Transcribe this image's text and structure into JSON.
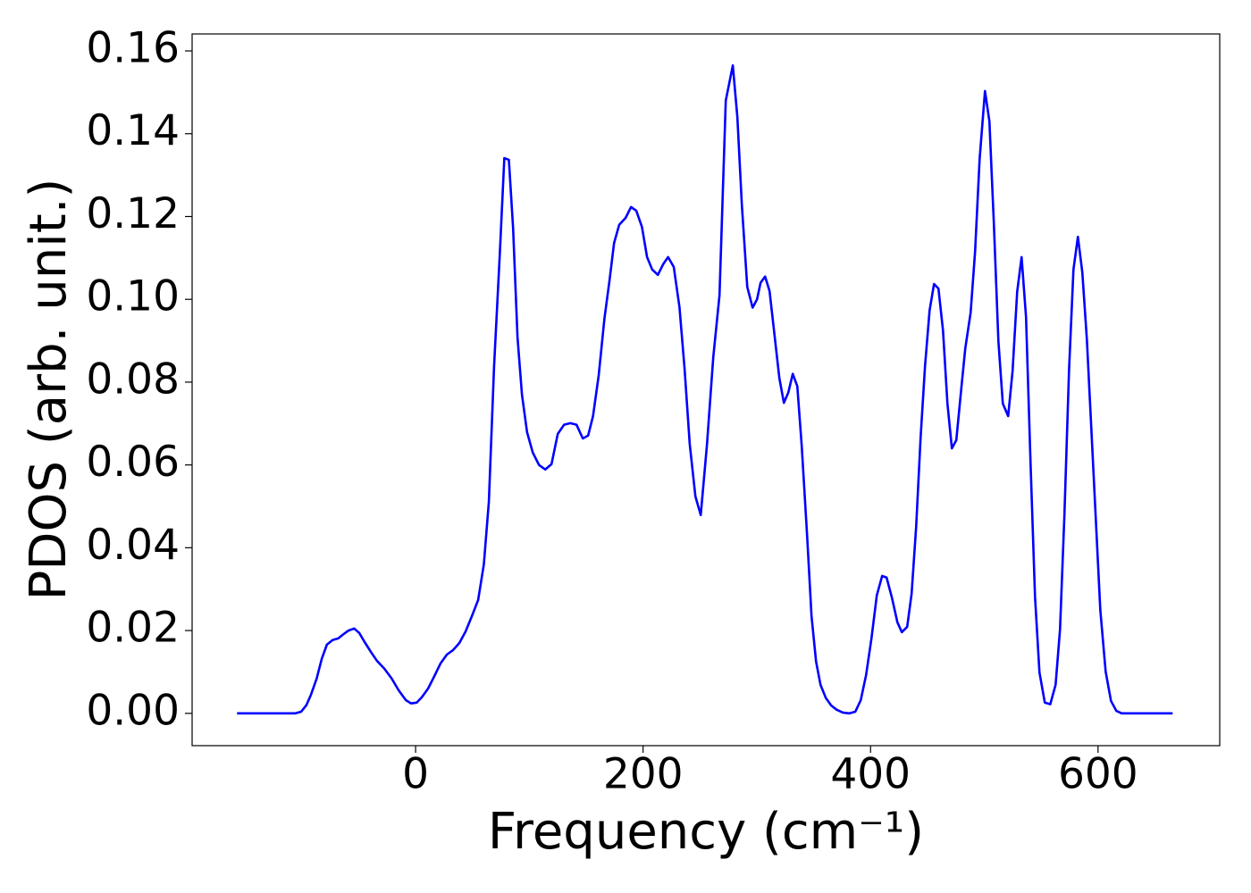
{
  "chart_data": {
    "type": "line",
    "xlabel": "Frequency (cm⁻¹)",
    "ylabel": "PDOS (arb. unit.)",
    "xlim": [
      -196.5,
      707
    ],
    "ylim": [
      -0.0078,
      0.1641
    ],
    "xticks": [
      0,
      200,
      400,
      600
    ],
    "yticks": [
      {
        "value": 0,
        "label": "0.00"
      },
      {
        "value": 0.02,
        "label": "0.02"
      },
      {
        "value": 0.04,
        "label": "0.04"
      },
      {
        "value": 0.06,
        "label": "0.06"
      },
      {
        "value": 0.08,
        "label": "0.08"
      },
      {
        "value": 0.1,
        "label": "0.10"
      },
      {
        "value": 0.12,
        "label": "0.12"
      },
      {
        "value": 0.14,
        "label": "0.14"
      },
      {
        "value": 0.16,
        "label": "0.16"
      }
    ],
    "grid": false,
    "series": [
      {
        "color": "#0000ff",
        "x": [
          -157,
          -106,
          -100.6,
          -96,
          -92,
          -87,
          -82.5,
          -78,
          -73,
          -68,
          -64,
          -59,
          -54,
          -49.5,
          -45,
          -39,
          -34,
          -27.5,
          -21,
          -15,
          -8.6,
          -4,
          1,
          5.5,
          11,
          16.5,
          22,
          27.5,
          33,
          38.5,
          44,
          49.5,
          55,
          60,
          64.4,
          69,
          74,
          78,
          82,
          85.7,
          89.6,
          93.5,
          98,
          103,
          108.5,
          114,
          119.5,
          125,
          130.5,
          136,
          141.5,
          147,
          151.7,
          156,
          161,
          166,
          170.5,
          174.5,
          179,
          184.7,
          189.4,
          194,
          199,
          203.5,
          208,
          213,
          217.7,
          222,
          227,
          232,
          236.5,
          241,
          246,
          250.7,
          256.2,
          261.7,
          267.2,
          272.7,
          278.9,
          282.9,
          286.8,
          291.6,
          296.3,
          300.2,
          303.3,
          307.3,
          311.2,
          315.1,
          319.8,
          323.8,
          327.7,
          331.6,
          335.6,
          339.5,
          344.2,
          348.1,
          352.1,
          356.0,
          360.7,
          365.4,
          370.1,
          375.6,
          381.1,
          386.6,
          391.4,
          396.1,
          400.8,
          405.5,
          410.2,
          414.1,
          418.9,
          423.6,
          427.5,
          432.2,
          436.1,
          440.1,
          444.0,
          447.9,
          451.9,
          455.8,
          459.7,
          463.7,
          467.6,
          471.5,
          475.4,
          479.4,
          483.3,
          488.0,
          491.9,
          495.9,
          500.6,
          504.5,
          508.4,
          512.4,
          516.3,
          521.0,
          524.9,
          528.9,
          532.8,
          536.7,
          540.7,
          544.6,
          548.5,
          553.2,
          558.0,
          562.7,
          566.6,
          570.5,
          574.5,
          578.4,
          582.3,
          586.2,
          590.2,
          594.1,
          598.0,
          602.0,
          606.7,
          611.4,
          616.1,
          620.8,
          665.6
        ],
        "values": [
          0,
          0,
          0.0004,
          0.002,
          0.0045,
          0.0084,
          0.0132,
          0.0166,
          0.0177,
          0.0181,
          0.019,
          0.02,
          0.0205,
          0.0194,
          0.0173,
          0.0147,
          0.0127,
          0.0108,
          0.0084,
          0.0056,
          0.0032,
          0.0024,
          0.0026,
          0.0039,
          0.006,
          0.009,
          0.0121,
          0.0142,
          0.0153,
          0.017,
          0.0198,
          0.0235,
          0.0274,
          0.036,
          0.0511,
          0.0839,
          0.1108,
          0.1341,
          0.1337,
          0.1173,
          0.0908,
          0.077,
          0.0679,
          0.063,
          0.06,
          0.0589,
          0.0602,
          0.0675,
          0.0697,
          0.0701,
          0.0697,
          0.0664,
          0.0671,
          0.0718,
          0.0817,
          0.0953,
          0.1046,
          0.1136,
          0.118,
          0.1197,
          0.1223,
          0.1214,
          0.1175,
          0.1102,
          0.1072,
          0.1059,
          0.1085,
          0.1102,
          0.1078,
          0.0981,
          0.0832,
          0.0651,
          0.0524,
          0.0479,
          0.065,
          0.086,
          0.101,
          0.148,
          0.1565,
          0.144,
          0.123,
          0.103,
          0.098,
          0.1,
          0.104,
          0.1055,
          0.102,
          0.0925,
          0.081,
          0.075,
          0.0775,
          0.082,
          0.079,
          0.0645,
          0.043,
          0.0235,
          0.0125,
          0.0069,
          0.0037,
          0.0019,
          0.0009,
          0.0002,
          0,
          0.0004,
          0.0032,
          0.0093,
          0.0181,
          0.0285,
          0.0332,
          0.0328,
          0.0278,
          0.022,
          0.0196,
          0.0209,
          0.0289,
          0.0451,
          0.0666,
          0.0839,
          0.0973,
          0.1037,
          0.1026,
          0.0925,
          0.0748,
          0.064,
          0.066,
          0.0774,
          0.0882,
          0.0968,
          0.1115,
          0.1339,
          0.1503,
          0.143,
          0.1184,
          0.0899,
          0.0748,
          0.0718,
          0.0828,
          0.1018,
          0.1102,
          0.0957,
          0.0602,
          0.0282,
          0.0099,
          0.0026,
          0.0022,
          0.0069,
          0.0203,
          0.0483,
          0.0828,
          0.1072,
          0.1151,
          0.1065,
          0.0903,
          0.0688,
          0.0472,
          0.025,
          0.0101,
          0.003,
          0.0006,
          0,
          0
        ]
      }
    ]
  }
}
